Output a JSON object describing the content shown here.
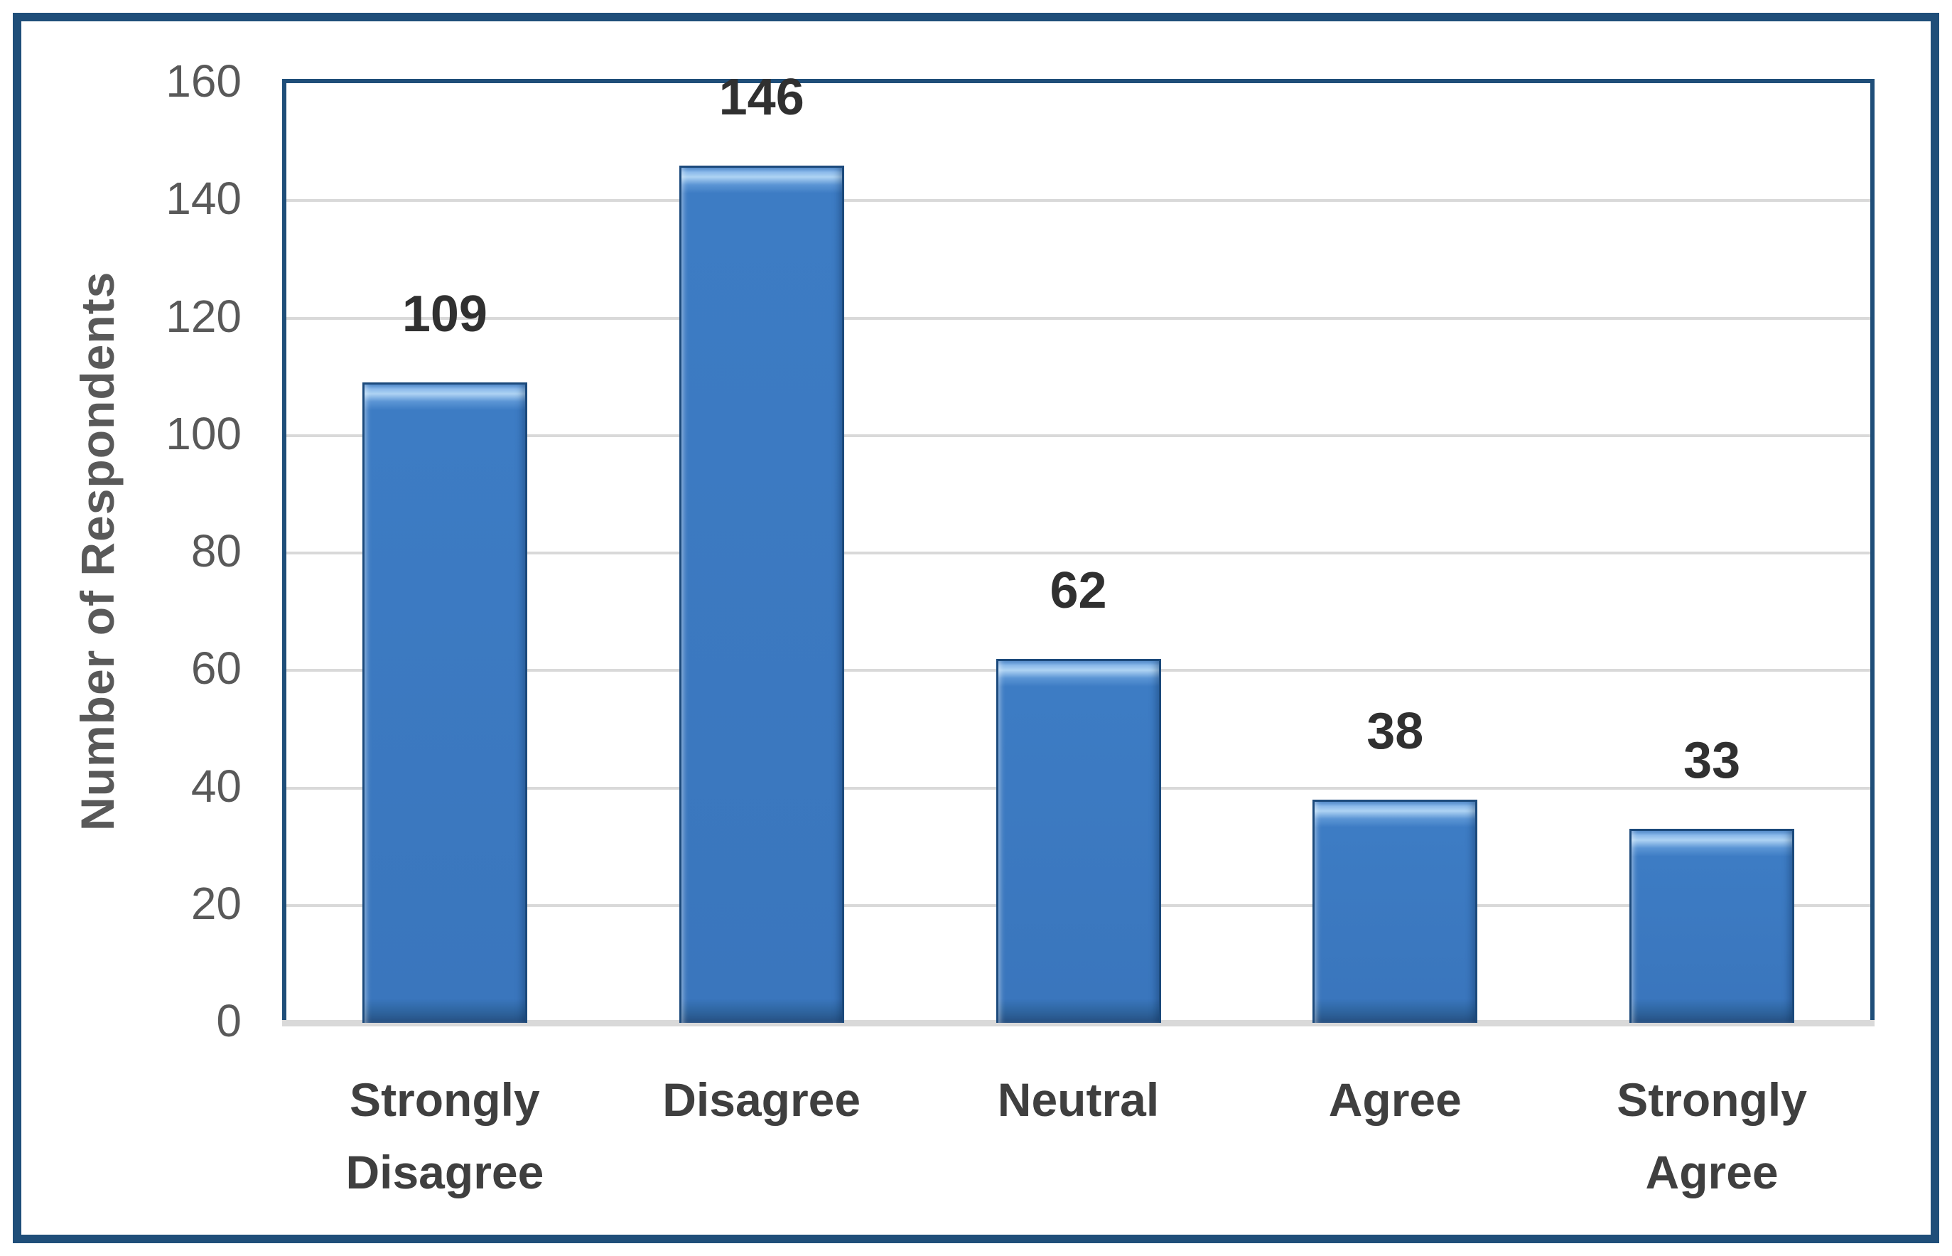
{
  "chart_data": {
    "type": "bar",
    "categories": [
      "Strongly Disagree",
      "Disagree",
      "Neutral",
      "Agree",
      "Strongly Agree"
    ],
    "values": [
      109,
      146,
      62,
      38,
      33
    ],
    "ylabel": "Number of Respondents",
    "ylim": [
      0,
      160
    ],
    "ytick_step": 20,
    "grid": true,
    "legend_position": "none",
    "data_labels_shown": true
  },
  "colors": {
    "background": "#ffffff",
    "frame_border": "#1f4e79",
    "plot_border": "#1f4e79",
    "gridline": "#d9d9d9",
    "axis_line": "#d9d9d9",
    "bar_border": "#1c4a7c",
    "bar_fill": "#3d7cc4",
    "bar_bevel_light": "#aed3f3",
    "bar_bevel_top_edge": "#4e8ace",
    "bar_bevel_dark": "#264f81",
    "tick_label": "#595959",
    "axis_title": "#595959",
    "category_label": "#3f3f3f",
    "data_label": "#303030"
  }
}
